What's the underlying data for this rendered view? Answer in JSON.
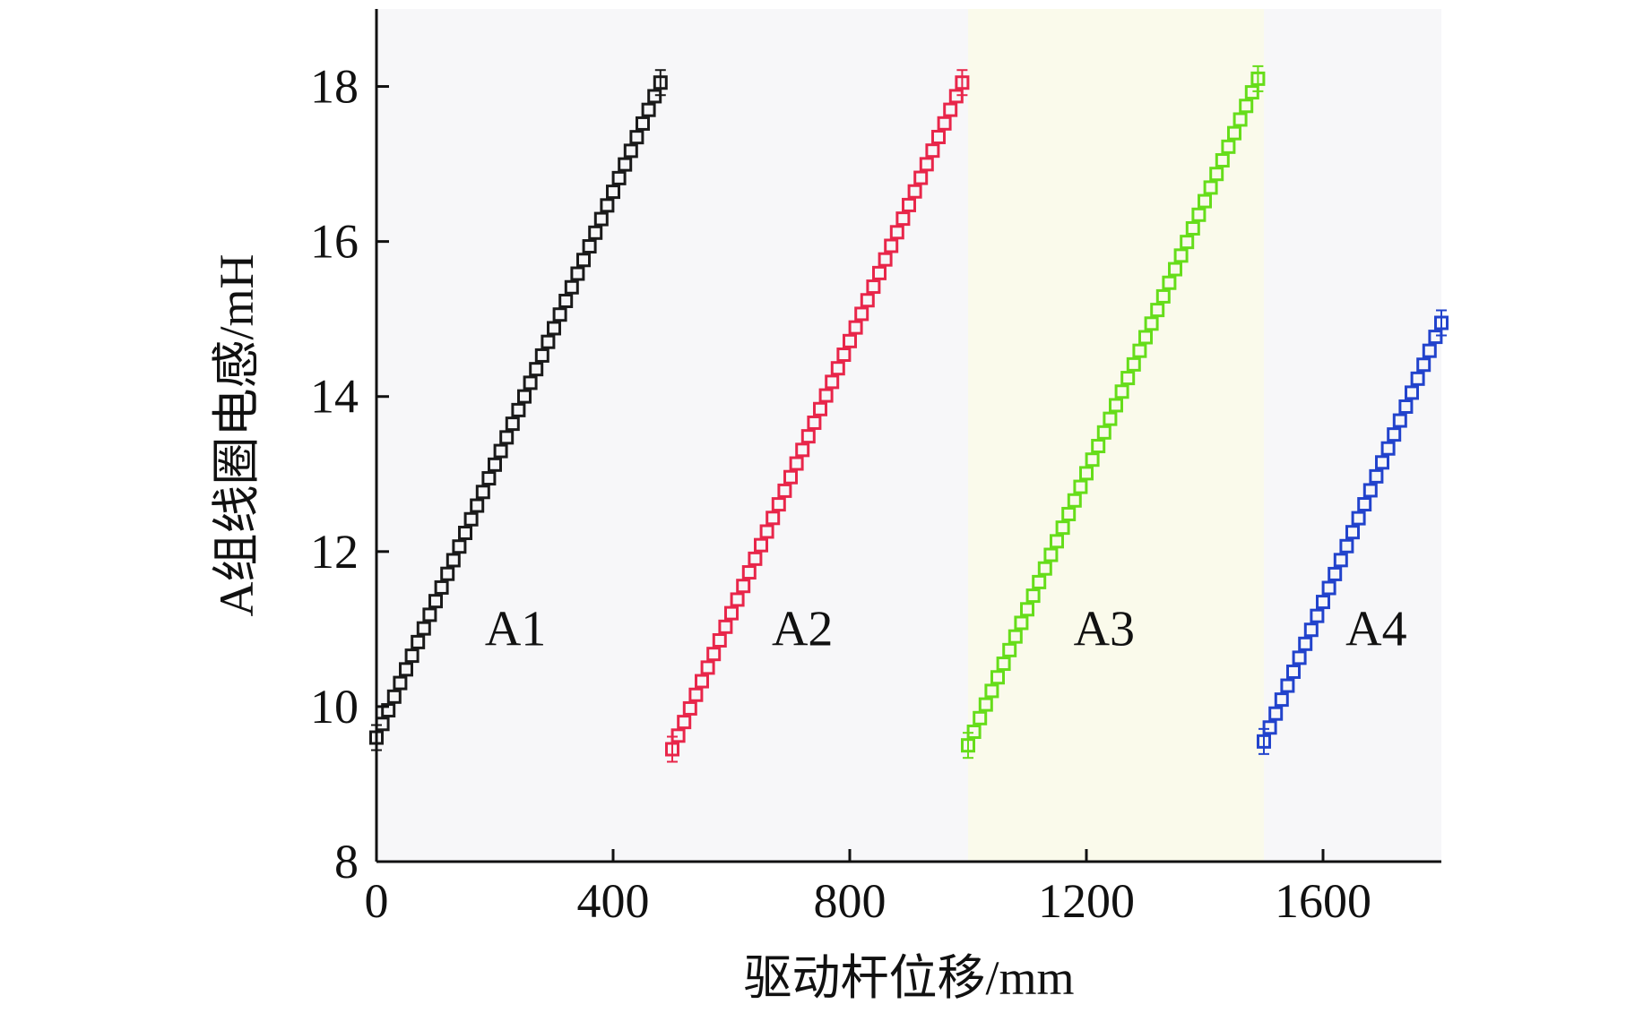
{
  "chart_data": {
    "type": "scatter",
    "xlabel": "驱动杆位移/mm",
    "ylabel": "A组线圈电感/mH",
    "xlim": [
      0,
      1800
    ],
    "ylim": [
      8,
      19
    ],
    "xticks": [
      0,
      400,
      800,
      1200,
      1600
    ],
    "yticks": [
      8,
      10,
      12,
      14,
      16,
      18
    ],
    "xtick_labels": [
      "0",
      "400",
      "800",
      "1200",
      "1600"
    ],
    "ytick_labels": [
      "8",
      "10",
      "12",
      "14",
      "16",
      "18"
    ],
    "grid": false,
    "marker": "hollow-square-with-error-bars",
    "background_bands": [
      {
        "x_range": [
          0,
          1000
        ],
        "color": "#f7f7f9"
      },
      {
        "x_range": [
          1000,
          1500
        ],
        "color": "#fafaeb"
      },
      {
        "x_range": [
          1500,
          1800
        ],
        "color": "#f7f7f9"
      }
    ],
    "series": [
      {
        "name": "A1",
        "color": "#1a1a1a",
        "x_start": 0,
        "x_end": 480,
        "y_start": 9.6,
        "y_end": 18.05,
        "points": 49,
        "label_pos": [
          235,
          11.0
        ]
      },
      {
        "name": "A2",
        "color": "#e8264a",
        "x_start": 500,
        "x_end": 990,
        "y_start": 9.45,
        "y_end": 18.05,
        "points": 50,
        "label_pos": [
          720,
          11.0
        ]
      },
      {
        "name": "A3",
        "color": "#66dd1a",
        "x_start": 1000,
        "x_end": 1490,
        "y_start": 9.5,
        "y_end": 18.1,
        "points": 50,
        "label_pos": [
          1230,
          11.0
        ]
      },
      {
        "name": "A4",
        "color": "#2243cc",
        "x_start": 1500,
        "x_end": 1800,
        "y_start": 9.55,
        "y_end": 14.95,
        "points": 31,
        "label_pos": [
          1690,
          11.0
        ]
      }
    ]
  }
}
